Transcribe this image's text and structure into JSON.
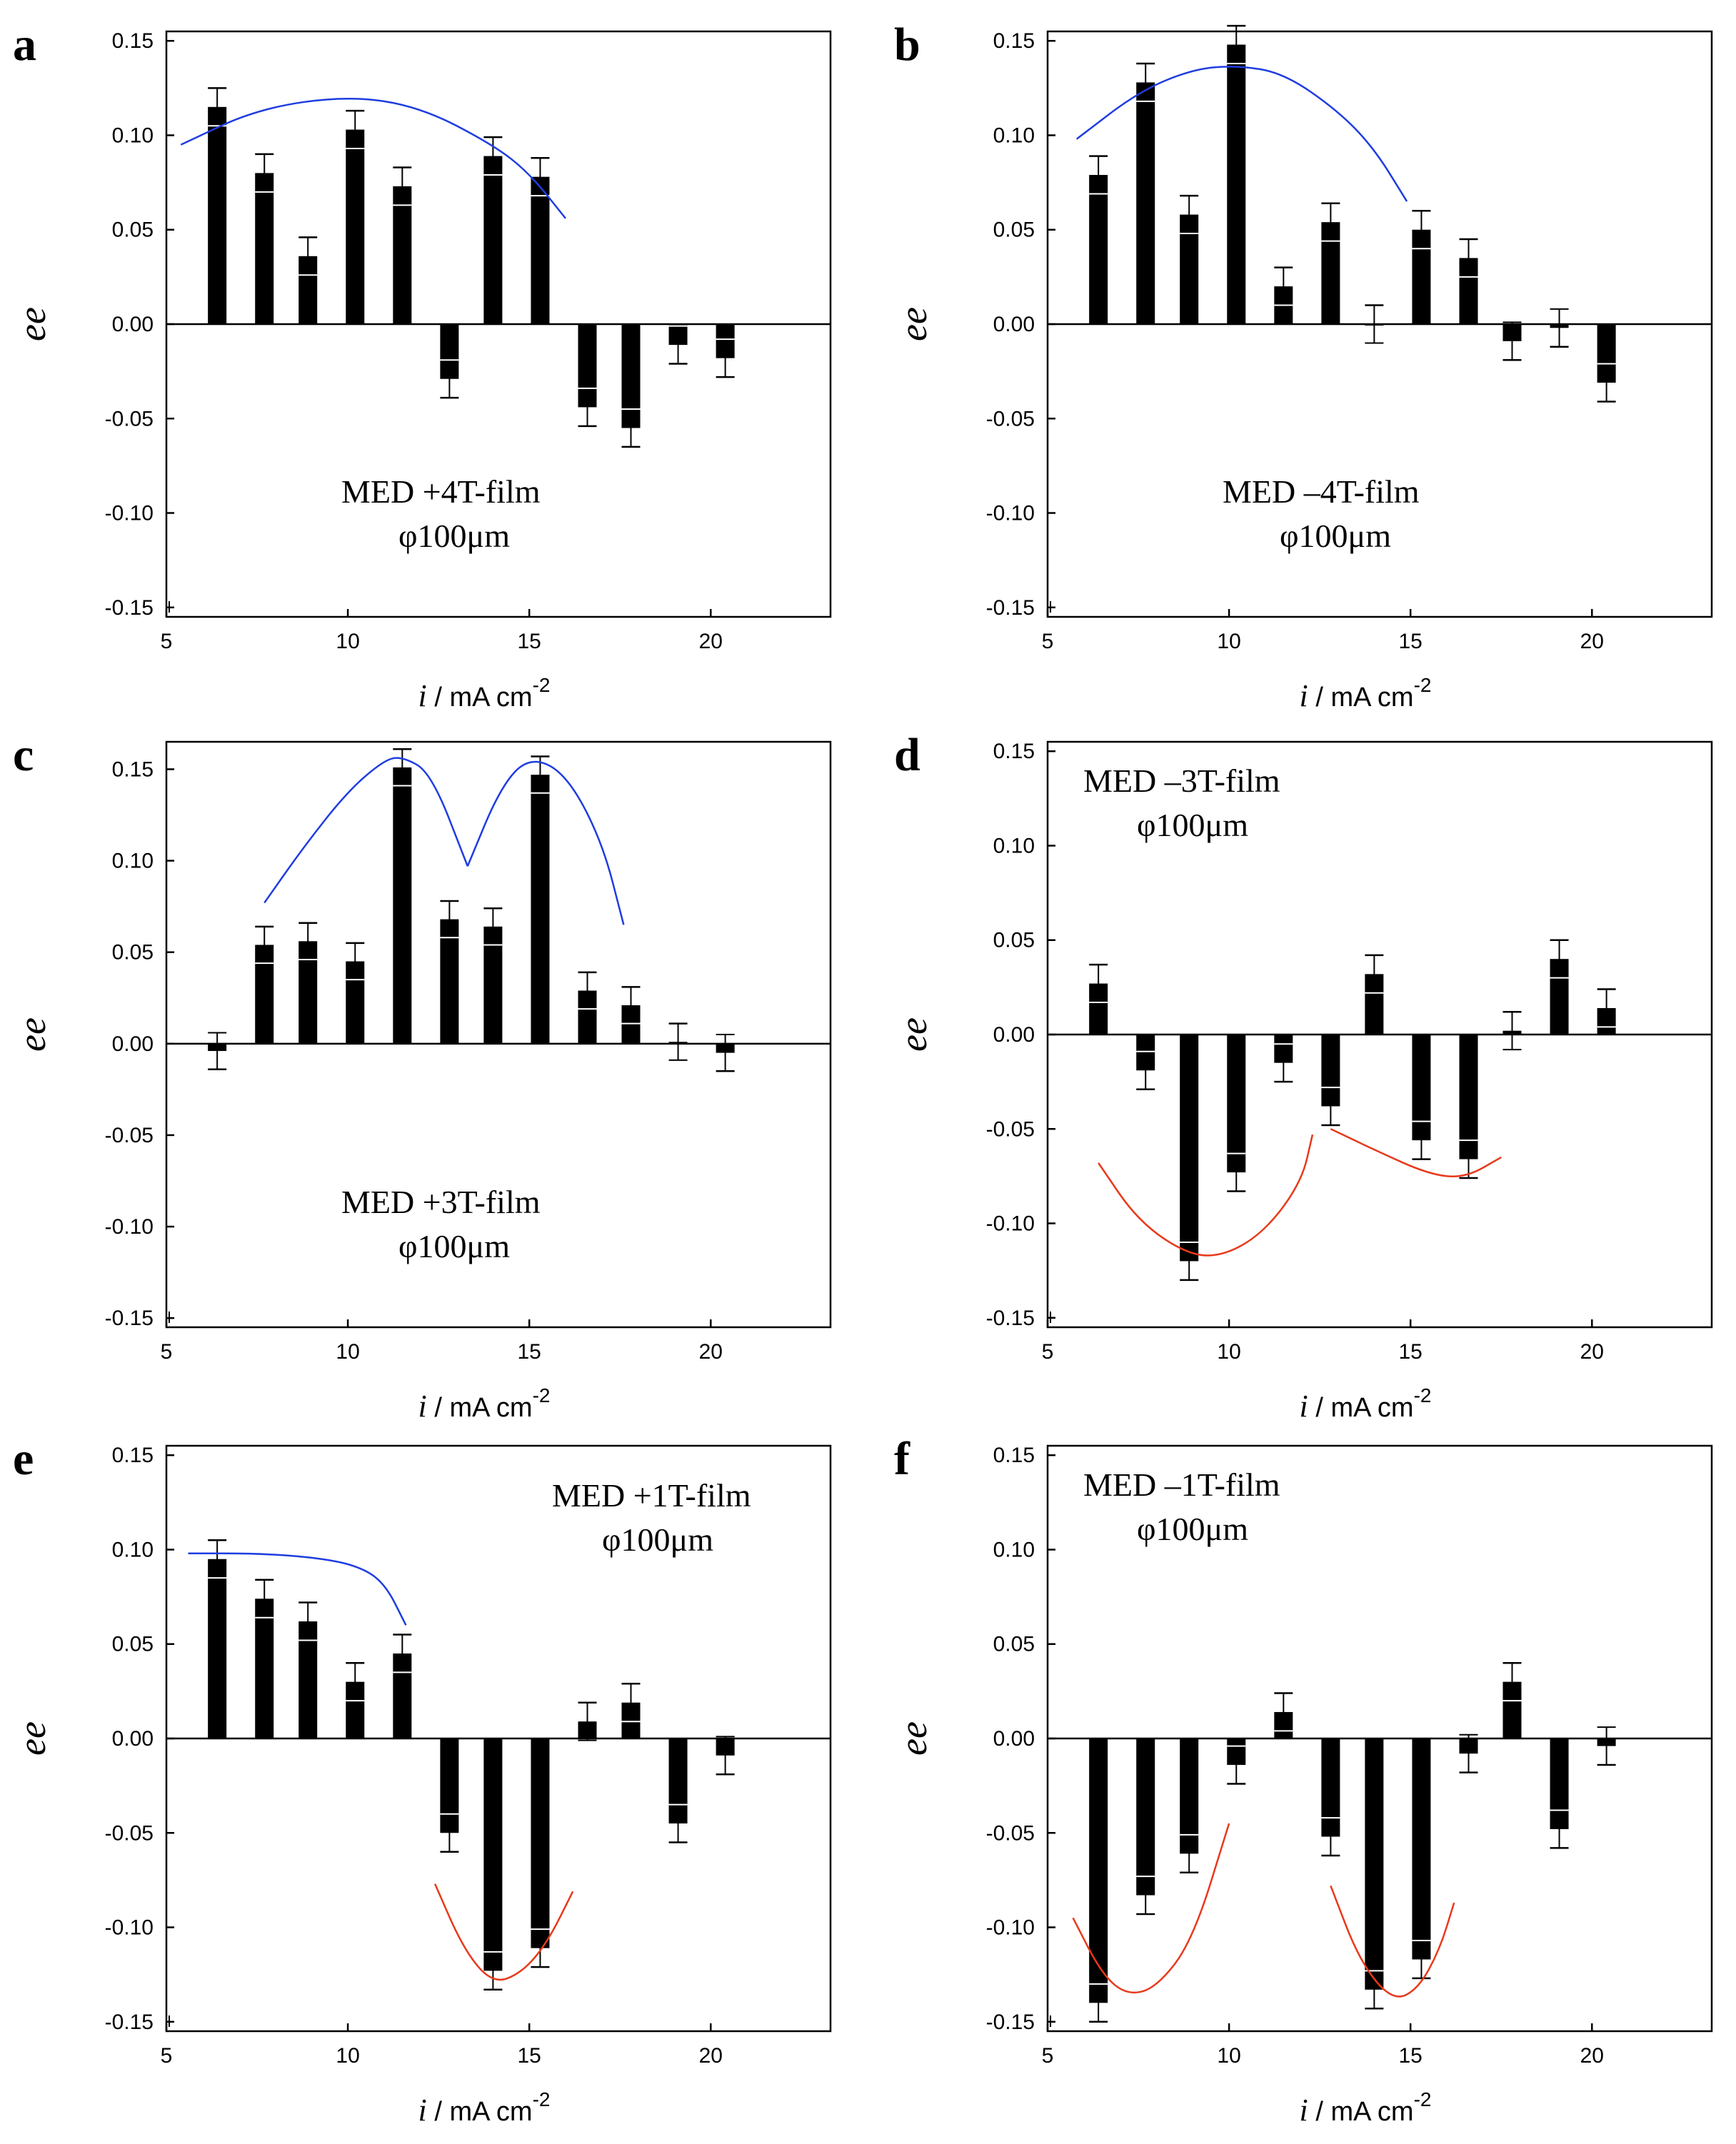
{
  "figure": {
    "colors": {
      "fit_blue": "#1f3de0",
      "fit_red": "#e8391c",
      "bar": "#000000"
    }
  },
  "chart_data": [
    {
      "panel": "a",
      "type": "bar",
      "x": [
        6.4,
        7.7,
        8.9,
        10.2,
        11.5,
        12.8,
        14.0,
        15.3,
        16.6,
        17.8,
        19.1,
        20.4
      ],
      "values": [
        0.115,
        0.08,
        0.036,
        0.103,
        0.073,
        -0.029,
        0.089,
        0.078,
        -0.044,
        -0.055,
        -0.011,
        -0.018
      ],
      "error": 0.01,
      "xlabel_italic": "i",
      "xlabel_rest": " / mA cm",
      "xlabel_sup": "-2",
      "ylabel": "ee",
      "xlim": [
        5,
        23.3
      ],
      "ylim": [
        -0.155,
        0.155
      ],
      "xticks": [
        5,
        10,
        15,
        20
      ],
      "yticks": [
        -0.15,
        -0.1,
        -0.05,
        0.0,
        0.05,
        0.1,
        0.15
      ],
      "ytick_labels": [
        "-0.15",
        "-0.10",
        "-0.05",
        "0.00",
        "0.05",
        "0.10",
        "0.15"
      ],
      "annotation": [
        "MED +4T-film",
        "φ100μm"
      ],
      "annotation_position": "lower-left",
      "fits": [
        {
          "color": "blue",
          "points": [
            [
              5.4,
              0.095
            ],
            [
              7.5,
              0.114
            ],
            [
              10.0,
              0.121
            ],
            [
              12.0,
              0.115
            ],
            [
              14.0,
              0.095
            ],
            [
              15.0,
              0.08
            ],
            [
              16.0,
              0.056
            ]
          ]
        }
      ]
    },
    {
      "panel": "b",
      "type": "bar",
      "x": [
        6.4,
        7.7,
        8.9,
        10.2,
        11.5,
        12.8,
        14.0,
        15.3,
        16.6,
        17.8,
        19.1,
        20.4
      ],
      "values": [
        0.079,
        0.128,
        0.058,
        0.148,
        0.02,
        0.054,
        0.0,
        0.05,
        0.035,
        -0.009,
        -0.002,
        -0.031
      ],
      "error": 0.01,
      "xlabel_italic": "i",
      "xlabel_rest": " / mA cm",
      "xlabel_sup": "-2",
      "ylabel": "ee",
      "xlim": [
        5,
        23.3
      ],
      "ylim": [
        -0.155,
        0.155
      ],
      "xticks": [
        5,
        10,
        15,
        20
      ],
      "yticks": [
        -0.15,
        -0.1,
        -0.05,
        0.0,
        0.05,
        0.1,
        0.15
      ],
      "ytick_labels": [
        "-0.15",
        "-0.10",
        "-0.05",
        "0.00",
        "0.05",
        "0.10",
        "0.15"
      ],
      "annotation": [
        "MED –4T-film",
        "φ100μm"
      ],
      "annotation_position": "lower-left",
      "fits": [
        {
          "color": "blue",
          "points": [
            [
              5.8,
              0.098
            ],
            [
              7.5,
              0.123
            ],
            [
              9.0,
              0.135
            ],
            [
              10.2,
              0.137
            ],
            [
              11.5,
              0.133
            ],
            [
              13.0,
              0.113
            ],
            [
              14.0,
              0.093
            ],
            [
              14.9,
              0.065
            ]
          ]
        }
      ]
    },
    {
      "panel": "c",
      "type": "bar",
      "x": [
        6.4,
        7.7,
        8.9,
        10.2,
        11.5,
        12.8,
        14.0,
        15.3,
        16.6,
        17.8,
        19.1,
        20.4
      ],
      "values": [
        -0.004,
        0.054,
        0.056,
        0.045,
        0.151,
        0.068,
        0.064,
        0.147,
        0.029,
        0.021,
        0.001,
        -0.005
      ],
      "error": 0.01,
      "xlabel_italic": "i",
      "xlabel_rest": " / mA cm",
      "xlabel_sup": "-2",
      "ylabel": "ee",
      "xlim": [
        5,
        23.3
      ],
      "ylim": [
        -0.155,
        0.165
      ],
      "xticks": [
        5,
        10,
        15,
        20
      ],
      "yticks": [
        -0.15,
        -0.1,
        -0.05,
        0.0,
        0.05,
        0.1,
        0.15
      ],
      "ytick_labels": [
        "-0.15",
        "-0.10",
        "-0.05",
        "0.00",
        "0.05",
        "0.10",
        "0.15"
      ],
      "annotation": [
        "MED +3T-film",
        "φ100μm"
      ],
      "annotation_position": "lower-left",
      "fits": [
        {
          "color": "blue",
          "points": [
            [
              7.7,
              0.077
            ],
            [
              8.8,
              0.108
            ],
            [
              10.0,
              0.138
            ],
            [
              11.0,
              0.155
            ],
            [
              11.5,
              0.157
            ],
            [
              12.3,
              0.148
            ],
            [
              13.3,
              0.097
            ]
          ]
        },
        {
          "color": "blue",
          "points": [
            [
              13.3,
              0.097
            ],
            [
              14.2,
              0.14
            ],
            [
              15.0,
              0.157
            ],
            [
              16.0,
              0.148
            ],
            [
              17.0,
              0.111
            ],
            [
              17.6,
              0.065
            ]
          ]
        }
      ]
    },
    {
      "panel": "d",
      "type": "bar",
      "x": [
        6.4,
        7.7,
        8.9,
        10.2,
        11.5,
        12.8,
        14.0,
        15.3,
        16.6,
        17.8,
        19.1,
        20.4
      ],
      "values": [
        0.027,
        -0.019,
        -0.12,
        -0.073,
        -0.015,
        -0.038,
        0.032,
        -0.056,
        -0.066,
        0.002,
        0.04,
        0.014
      ],
      "error": 0.01,
      "xlabel_italic": "i",
      "xlabel_rest": " / mA cm",
      "xlabel_sup": "-2",
      "ylabel": "ee",
      "xlim": [
        5,
        23.3
      ],
      "ylim": [
        -0.155,
        0.155
      ],
      "xticks": [
        5,
        10,
        15,
        20
      ],
      "yticks": [
        -0.15,
        -0.1,
        -0.05,
        0.0,
        0.05,
        0.1,
        0.15
      ],
      "ytick_labels": [
        "-0.15",
        "-0.10",
        "-0.05",
        "0.00",
        "0.05",
        "0.10",
        "0.15"
      ],
      "annotation": [
        "MED –3T-film",
        "φ100μm"
      ],
      "annotation_position": "top-left",
      "fits": [
        {
          "color": "red",
          "points": [
            [
              6.4,
              -0.068
            ],
            [
              7.5,
              -0.099
            ],
            [
              8.9,
              -0.117
            ],
            [
              9.9,
              -0.117
            ],
            [
              11.0,
              -0.104
            ],
            [
              12.0,
              -0.078
            ],
            [
              12.3,
              -0.053
            ]
          ]
        },
        {
          "color": "red",
          "points": [
            [
              12.8,
              -0.05
            ],
            [
              14.0,
              -0.061
            ],
            [
              15.5,
              -0.074
            ],
            [
              16.5,
              -0.076
            ],
            [
              17.5,
              -0.065
            ]
          ]
        }
      ]
    },
    {
      "panel": "e",
      "type": "bar",
      "x": [
        6.4,
        7.7,
        8.9,
        10.2,
        11.5,
        12.8,
        14.0,
        15.3,
        16.6,
        17.8,
        19.1,
        20.4
      ],
      "values": [
        0.095,
        0.074,
        0.062,
        0.03,
        0.045,
        -0.05,
        -0.123,
        -0.111,
        0.009,
        0.019,
        -0.045,
        -0.009
      ],
      "error": 0.01,
      "xlabel_italic": "i",
      "xlabel_rest": " / mA cm",
      "xlabel_sup": "-2",
      "ylabel": "ee",
      "xlim": [
        5,
        23.3
      ],
      "ylim": [
        -0.155,
        0.155
      ],
      "xticks": [
        5,
        10,
        15,
        20
      ],
      "yticks": [
        -0.15,
        -0.1,
        -0.05,
        0.0,
        0.05,
        0.1,
        0.15
      ],
      "ytick_labels": [
        "-0.15",
        "-0.10",
        "-0.05",
        "0.00",
        "0.05",
        "0.10",
        "0.15"
      ],
      "annotation": [
        "MED +1T-film",
        "φ100μm"
      ],
      "annotation_position": "top-right",
      "fits": [
        {
          "color": "blue",
          "points": [
            [
              5.6,
              0.098
            ],
            [
              7.5,
              0.098
            ],
            [
              9.0,
              0.096
            ],
            [
              10.2,
              0.092
            ],
            [
              11.0,
              0.083
            ],
            [
              11.6,
              0.06
            ]
          ]
        },
        {
          "color": "red",
          "points": [
            [
              12.4,
              -0.077
            ],
            [
              13.2,
              -0.112
            ],
            [
              14.0,
              -0.13
            ],
            [
              14.8,
              -0.124
            ],
            [
              15.5,
              -0.108
            ],
            [
              16.2,
              -0.081
            ]
          ]
        }
      ]
    },
    {
      "panel": "f",
      "type": "bar",
      "x": [
        6.4,
        7.7,
        8.9,
        10.2,
        11.5,
        12.8,
        14.0,
        15.3,
        16.6,
        17.8,
        19.1,
        20.4
      ],
      "values": [
        -0.14,
        -0.083,
        -0.061,
        -0.014,
        0.014,
        -0.052,
        -0.133,
        -0.117,
        -0.008,
        0.03,
        -0.048,
        -0.004
      ],
      "error": 0.01,
      "xlabel_italic": "i",
      "xlabel_rest": " / mA cm",
      "xlabel_sup": "-2",
      "ylabel": "ee",
      "xlim": [
        5,
        23.3
      ],
      "ylim": [
        -0.155,
        0.155
      ],
      "xticks": [
        5,
        10,
        15,
        20
      ],
      "yticks": [
        -0.15,
        -0.1,
        -0.05,
        0.0,
        0.05,
        0.1,
        0.15
      ],
      "ytick_labels": [
        "-0.15",
        "-0.10",
        "-0.05",
        "0.00",
        "0.05",
        "0.10",
        "0.15"
      ],
      "annotation": [
        "MED –1T-film",
        "φ100μm"
      ],
      "annotation_position": "top-left",
      "fits": [
        {
          "color": "red",
          "points": [
            [
              5.7,
              -0.095
            ],
            [
              6.5,
              -0.125
            ],
            [
              7.2,
              -0.136
            ],
            [
              8.0,
              -0.132
            ],
            [
              9.0,
              -0.107
            ],
            [
              10.0,
              -0.045
            ]
          ]
        },
        {
          "color": "red",
          "points": [
            [
              12.8,
              -0.078
            ],
            [
              13.6,
              -0.118
            ],
            [
              14.5,
              -0.139
            ],
            [
              15.2,
              -0.133
            ],
            [
              15.8,
              -0.112
            ],
            [
              16.2,
              -0.087
            ]
          ]
        }
      ]
    }
  ]
}
